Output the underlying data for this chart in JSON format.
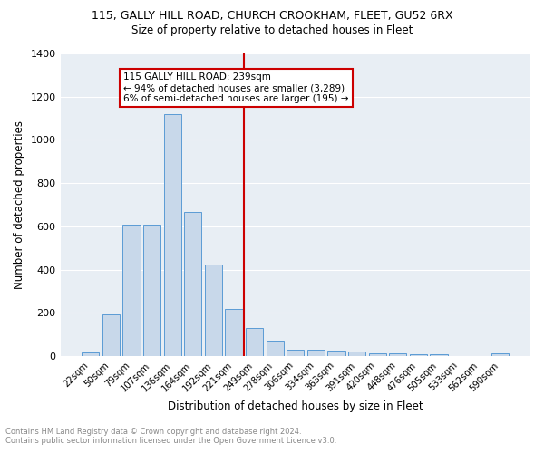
{
  "title1": "115, GALLY HILL ROAD, CHURCH CROOKHAM, FLEET, GU52 6RX",
  "title2": "Size of property relative to detached houses in Fleet",
  "xlabel": "Distribution of detached houses by size in Fleet",
  "ylabel": "Number of detached properties",
  "footnote1": "Contains HM Land Registry data © Crown copyright and database right 2024.",
  "footnote2": "Contains public sector information licensed under the Open Government Licence v3.0.",
  "annotation_line1": "115 GALLY HILL ROAD: 239sqm",
  "annotation_line2": "← 94% of detached houses are smaller (3,289)",
  "annotation_line3": "6% of semi-detached houses are larger (195) →",
  "bar_labels": [
    "22sqm",
    "50sqm",
    "79sqm",
    "107sqm",
    "136sqm",
    "164sqm",
    "192sqm",
    "221sqm",
    "249sqm",
    "278sqm",
    "306sqm",
    "334sqm",
    "363sqm",
    "391sqm",
    "420sqm",
    "448sqm",
    "476sqm",
    "505sqm",
    "533sqm",
    "562sqm",
    "590sqm"
  ],
  "bar_values": [
    18,
    195,
    610,
    610,
    1120,
    665,
    425,
    220,
    130,
    70,
    30,
    30,
    25,
    20,
    15,
    12,
    10,
    10,
    0,
    0,
    15
  ],
  "bar_color": "#c8d8ea",
  "bar_edge_color": "#5b9bd5",
  "vline_color": "#cc0000",
  "vline_pos": 7.5,
  "ylim": [
    0,
    1400
  ],
  "yticks": [
    0,
    200,
    400,
    600,
    800,
    1000,
    1200,
    1400
  ],
  "background_color": "#e8eef4",
  "grid_color": "#ffffff",
  "annotation_box_edge": "#cc0000",
  "annotation_box_face": "#ffffff"
}
